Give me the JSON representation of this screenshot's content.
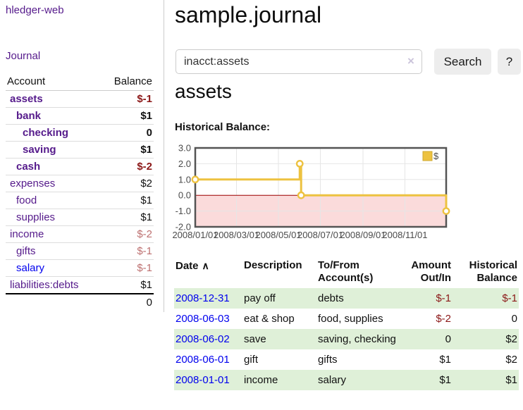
{
  "app": {
    "title": "hledger-web",
    "nav_journal": "Journal"
  },
  "sidebar": {
    "col_account": "Account",
    "col_balance": "Balance",
    "accounts": [
      {
        "name": "assets",
        "balance": "$-1"
      },
      {
        "name": "bank",
        "balance": "$1"
      },
      {
        "name": "checking",
        "balance": "0"
      },
      {
        "name": "saving",
        "balance": "$1"
      },
      {
        "name": "cash",
        "balance": "$-2"
      },
      {
        "name": "expenses",
        "balance": "$2"
      },
      {
        "name": "food",
        "balance": "$1"
      },
      {
        "name": "supplies",
        "balance": "$1"
      },
      {
        "name": "income",
        "balance": "$-2"
      },
      {
        "name": "gifts",
        "balance": "$-1"
      },
      {
        "name": "salary",
        "balance": "$-1"
      },
      {
        "name": "liabilities:debts",
        "balance": "$1"
      }
    ],
    "total": "0"
  },
  "main": {
    "title": "sample.journal",
    "search": {
      "value": "inacct:assets",
      "clear_icon": "×",
      "button": "Search",
      "help": "?"
    },
    "account_heading": "assets",
    "chart_label": "Historical Balance:"
  },
  "chart_data": {
    "type": "line",
    "step": true,
    "title": "Historical Balance",
    "series": [
      {
        "name": "$",
        "points": [
          [
            "2008-01-01",
            1
          ],
          [
            "2008-06-01",
            2
          ],
          [
            "2008-06-03",
            0
          ],
          [
            "2008-12-31",
            -1
          ]
        ]
      }
    ],
    "x_range": [
      "2008-01-01",
      "2008-12-31"
    ],
    "x_ticks": [
      {
        "date": "2008-01-01",
        "label": "2008/01/01"
      },
      {
        "date": "2008-03-01",
        "label": "2008/03/01"
      },
      {
        "date": "2008-05-01",
        "label": "2008/05/01"
      },
      {
        "date": "2008-07-01",
        "label": "2008/07/01"
      },
      {
        "date": "2008-09-01",
        "label": "2008/09/01"
      },
      {
        "date": "2008-11-01",
        "label": "2008/11/01"
      }
    ],
    "ylim": [
      -2,
      3
    ],
    "y_ticks": [
      3,
      2,
      1,
      0,
      -1,
      -2
    ],
    "legend": {
      "label": "$",
      "position": "top-right"
    },
    "colors": {
      "line": "#edc240",
      "legend_border": "#cfa930",
      "negative_region": "#fbdbdb",
      "zero_line": "#990000",
      "grid": "#e6e6e6",
      "border": "#545454",
      "tick_text": "#4a4a4a"
    }
  },
  "register": {
    "sort_icon": "∧",
    "headers": {
      "date": "Date",
      "description": "Description",
      "accounts": "To/From Account(s)",
      "amount": "Amount Out/In",
      "historical": "Historical Balance"
    },
    "rows": [
      {
        "date": "2008-12-31",
        "description": "pay off",
        "accounts": "debts",
        "amount": "$-1",
        "historical": "$-1"
      },
      {
        "date": "2008-06-03",
        "description": "eat & shop",
        "accounts": "food, supplies",
        "amount": "$-2",
        "historical": "0"
      },
      {
        "date": "2008-06-02",
        "description": "save",
        "accounts": "saving, checking",
        "amount": "0",
        "historical": "$2"
      },
      {
        "date": "2008-06-01",
        "description": "gift",
        "accounts": "gifts",
        "amount": "$1",
        "historical": "$2"
      },
      {
        "date": "2008-01-01",
        "description": "income",
        "accounts": "salary",
        "amount": "$1",
        "historical": "$1"
      }
    ]
  }
}
